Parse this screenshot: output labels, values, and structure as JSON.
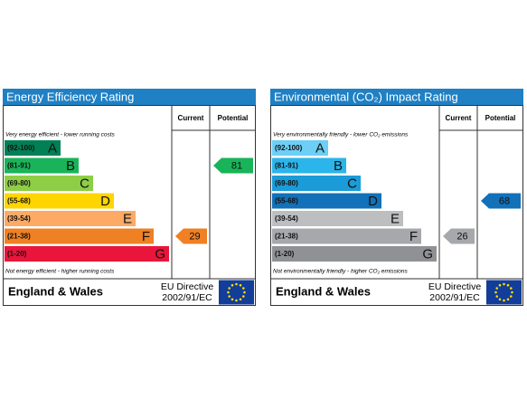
{
  "panels": [
    {
      "title": "Energy Efficiency Rating",
      "headers": [
        "Current",
        "Potential"
      ],
      "top_note": "Very energy efficient - lower running costs",
      "bottom_note": "Not energy efficient - higher running costs",
      "bands": [
        {
          "range": "(92-100)",
          "letter": "A",
          "color": "#008054"
        },
        {
          "range": "(81-91)",
          "letter": "B",
          "color": "#19b459"
        },
        {
          "range": "(69-80)",
          "letter": "C",
          "color": "#8dce46"
        },
        {
          "range": "(55-68)",
          "letter": "D",
          "color": "#ffd500"
        },
        {
          "range": "(39-54)",
          "letter": "E",
          "color": "#fcaa65"
        },
        {
          "range": "(21-38)",
          "letter": "F",
          "color": "#ef8023"
        },
        {
          "range": "(1-20)",
          "letter": "G",
          "color": "#e9153b"
        }
      ],
      "current": 29,
      "potential": 81,
      "region": "England & Wales",
      "directive": [
        "EU Directive",
        "2002/91/EC"
      ]
    },
    {
      "title": "Environmental (CO₂) Impact Rating",
      "headers": [
        "Current",
        "Potential"
      ],
      "top_note": "Very environmentally friendly - lower CO₂ emissions",
      "bottom_note": "Not environmentally friendly - higher CO₂ emissions",
      "bands": [
        {
          "range": "(92-100)",
          "letter": "A",
          "color": "#6dcff6"
        },
        {
          "range": "(81-91)",
          "letter": "B",
          "color": "#2bb5ea"
        },
        {
          "range": "(69-80)",
          "letter": "C",
          "color": "#1b9bd7"
        },
        {
          "range": "(55-68)",
          "letter": "D",
          "color": "#1271b8"
        },
        {
          "range": "(39-54)",
          "letter": "E",
          "color": "#bcbec0"
        },
        {
          "range": "(21-38)",
          "letter": "F",
          "color": "#a6a8ab"
        },
        {
          "range": "(1-20)",
          "letter": "G",
          "color": "#8f9194"
        }
      ],
      "current": 26,
      "potential": 68,
      "region": "England & Wales",
      "directive": [
        "EU Directive",
        "2002/91/EC"
      ]
    }
  ]
}
